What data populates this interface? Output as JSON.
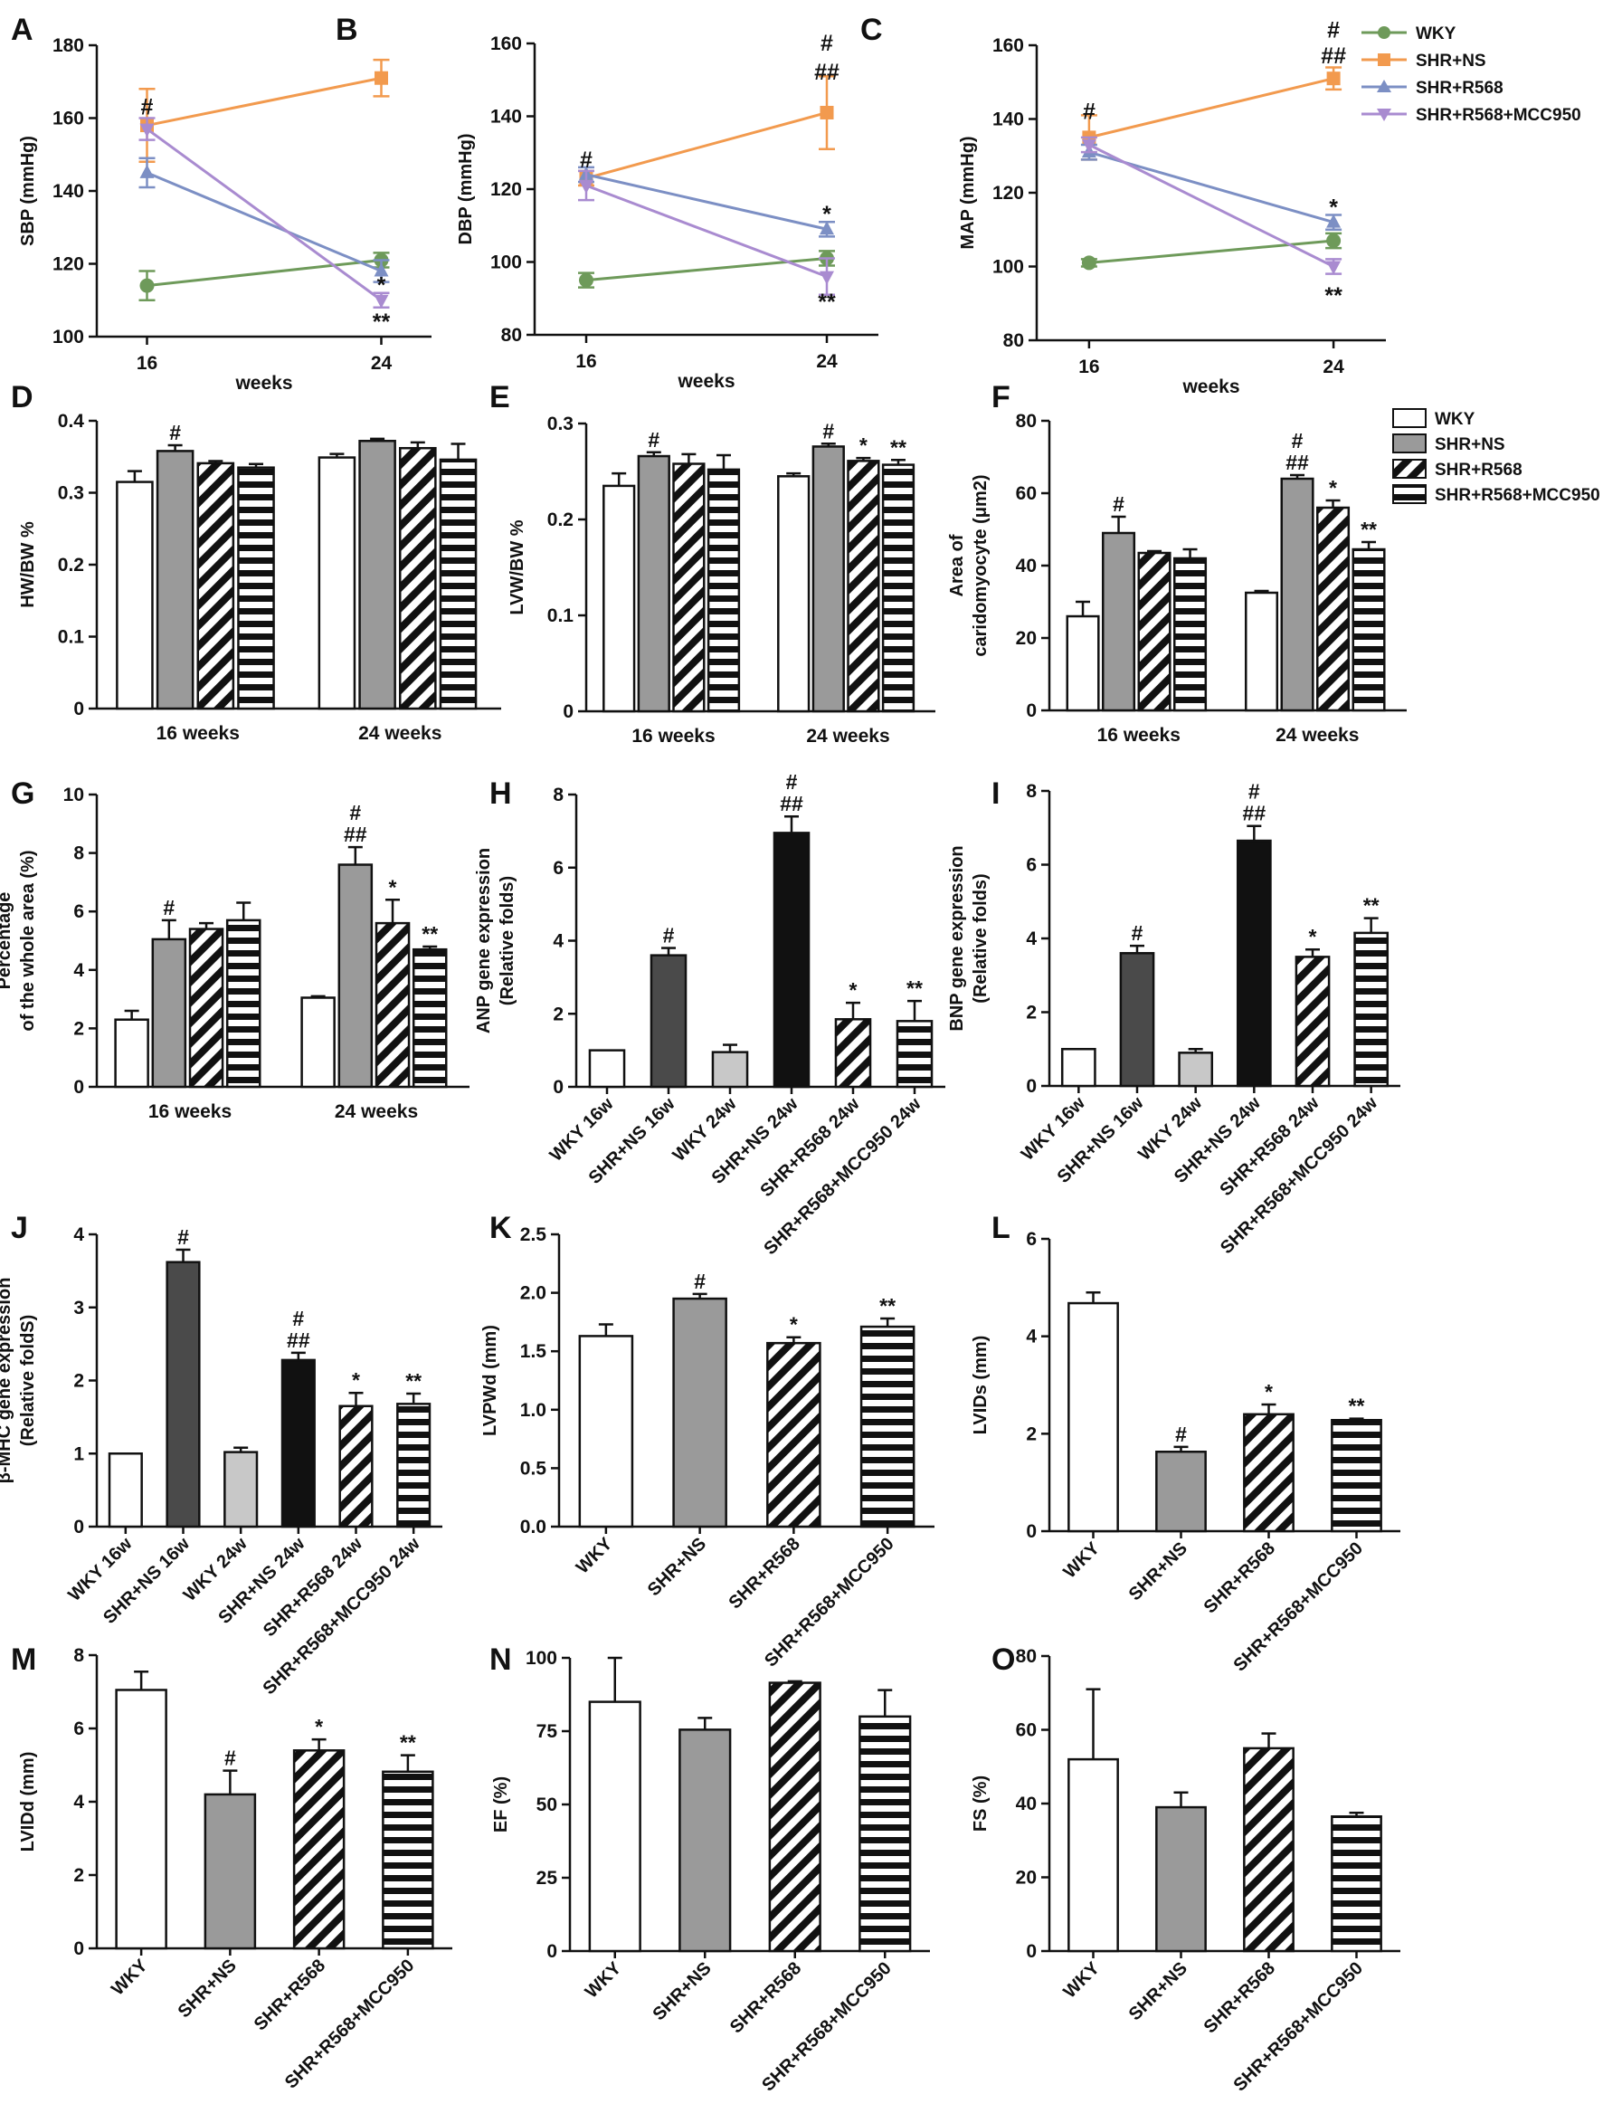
{
  "legend_lines": [
    "WKY",
    "SHR+NS",
    "SHR+R568",
    "SHR+R568+MCC950"
  ],
  "legend_bars": [
    "WKY",
    "SHR+NS",
    "SHR+R568",
    "SHR+R568+MCC950"
  ],
  "colors": {
    "WKY_line": "#6e9a5a",
    "SHR_NS_line": "#f29a4e",
    "SHR_R568_line": "#7c8fc4",
    "SHR_R568_MCC950_line": "#a98bd0",
    "bar_nsgray": "#9a9a9a",
    "bar_dark": "#4a4a4a",
    "bar_light": "#c8c8c8",
    "bar_black": "#111111"
  },
  "chart_data": [
    {
      "panel": "A",
      "type": "line",
      "ylabel": "SBP (mmHg)",
      "xlabel": "weeks",
      "x": [
        16,
        24
      ],
      "ylim": [
        100,
        180
      ],
      "yticks": [
        100,
        120,
        140,
        160,
        180
      ],
      "series": [
        {
          "name": "WKY",
          "values": [
            114,
            121
          ],
          "err": [
            4,
            2
          ]
        },
        {
          "name": "SHR+NS",
          "values": [
            158,
            171
          ],
          "err": [
            10,
            5
          ]
        },
        {
          "name": "SHR+R568",
          "values": [
            145,
            118
          ],
          "err": [
            4,
            3
          ]
        },
        {
          "name": "SHR+R568+MCC950",
          "values": [
            157,
            110
          ],
          "err": [
            3,
            2
          ]
        }
      ],
      "annotations": [
        {
          "x": 16,
          "y": 163,
          "text": "#"
        },
        {
          "x": 24,
          "y": 114,
          "text": "*"
        },
        {
          "x": 24,
          "y": 104,
          "text": "**"
        }
      ]
    },
    {
      "panel": "B",
      "type": "line",
      "ylabel": "DBP (mmHg)",
      "xlabel": "weeks",
      "x": [
        16,
        24
      ],
      "ylim": [
        80,
        160
      ],
      "yticks": [
        80,
        100,
        120,
        140,
        160
      ],
      "series": [
        {
          "name": "WKY",
          "values": [
            95,
            101
          ],
          "err": [
            2,
            2
          ]
        },
        {
          "name": "SHR+NS",
          "values": [
            123,
            141
          ],
          "err": [
            2,
            10
          ]
        },
        {
          "name": "SHR+R568",
          "values": [
            124,
            109
          ],
          "err": [
            2,
            2
          ]
        },
        {
          "name": "SHR+R568+MCC950",
          "values": [
            121,
            96
          ],
          "err": [
            4,
            5
          ]
        }
      ],
      "annotations": [
        {
          "x": 16,
          "y": 128,
          "text": "#"
        },
        {
          "x": 24,
          "y": 160,
          "text": "#"
        },
        {
          "x": 24,
          "y": 152,
          "text": "##"
        },
        {
          "x": 24,
          "y": 113,
          "text": "*"
        },
        {
          "x": 24,
          "y": 89,
          "text": "**"
        }
      ]
    },
    {
      "panel": "C",
      "type": "line",
      "ylabel": "MAP (mmHg)",
      "xlabel": "weeks",
      "x": [
        16,
        24
      ],
      "ylim": [
        80,
        160
      ],
      "yticks": [
        80,
        100,
        120,
        140,
        160
      ],
      "series": [
        {
          "name": "WKY",
          "values": [
            101,
            107
          ],
          "err": [
            1,
            2
          ]
        },
        {
          "name": "SHR+NS",
          "values": [
            135,
            151
          ],
          "err": [
            6,
            3
          ]
        },
        {
          "name": "SHR+R568",
          "values": [
            131,
            112
          ],
          "err": [
            2,
            2
          ]
        },
        {
          "name": "SHR+R568+MCC950",
          "values": [
            133,
            100
          ],
          "err": [
            2,
            2
          ]
        }
      ],
      "annotations": [
        {
          "x": 16,
          "y": 142,
          "text": "#"
        },
        {
          "x": 24,
          "y": 164,
          "text": "#"
        },
        {
          "x": 24,
          "y": 157,
          "text": "##"
        },
        {
          "x": 24,
          "y": 116,
          "text": "*"
        },
        {
          "x": 24,
          "y": 92,
          "text": "**"
        }
      ]
    },
    {
      "panel": "D",
      "type": "bar",
      "ylabel": "HW/BW %",
      "categories": [
        "16 weeks",
        "24 weeks"
      ],
      "ylim": [
        0,
        0.4
      ],
      "yticks": [
        0.0,
        0.1,
        0.2,
        0.3,
        0.4
      ],
      "series": [
        {
          "name": "WKY",
          "values": [
            0.315,
            0.349
          ],
          "err": [
            0.015,
            0.005
          ]
        },
        {
          "name": "SHR+NS",
          "values": [
            0.358,
            0.372
          ],
          "err": [
            0.008,
            0.003
          ]
        },
        {
          "name": "SHR+R568",
          "values": [
            0.341,
            0.362
          ],
          "err": [
            0.003,
            0.008
          ]
        },
        {
          "name": "SHR+R568+MCC950",
          "values": [
            0.335,
            0.346
          ],
          "err": [
            0.005,
            0.022
          ]
        }
      ],
      "annotations": [
        {
          "group": 0,
          "bar": 1,
          "text": "#"
        }
      ]
    },
    {
      "panel": "E",
      "type": "bar",
      "ylabel": "LVW/BW %",
      "categories": [
        "16 weeks",
        "24 weeks"
      ],
      "ylim": [
        0,
        0.3
      ],
      "yticks": [
        0.0,
        0.1,
        0.2,
        0.3
      ],
      "series": [
        {
          "name": "WKY",
          "values": [
            0.235,
            0.245
          ],
          "err": [
            0.013,
            0.003
          ]
        },
        {
          "name": "SHR+NS",
          "values": [
            0.266,
            0.276
          ],
          "err": [
            0.004,
            0.003
          ]
        },
        {
          "name": "SHR+R568",
          "values": [
            0.258,
            0.261
          ],
          "err": [
            0.01,
            0.003
          ]
        },
        {
          "name": "SHR+R568+MCC950",
          "values": [
            0.252,
            0.257
          ],
          "err": [
            0.015,
            0.005
          ]
        }
      ],
      "annotations": [
        {
          "group": 0,
          "bar": 1,
          "text": "#"
        },
        {
          "group": 1,
          "bar": 1,
          "text": "#"
        },
        {
          "group": 1,
          "bar": 2,
          "text": "*"
        },
        {
          "group": 1,
          "bar": 3,
          "text": "**"
        }
      ]
    },
    {
      "panel": "F",
      "type": "bar",
      "ylabel": "Area of caridomyocyte (μm2)",
      "ylabel_lines": [
        "Area of",
        "caridomyocyte (μm2)"
      ],
      "categories": [
        "16 weeks",
        "24 weeks"
      ],
      "ylim": [
        0,
        80
      ],
      "yticks": [
        0,
        20,
        40,
        60,
        80
      ],
      "series": [
        {
          "name": "WKY",
          "values": [
            26,
            32.5
          ],
          "err": [
            4,
            0.5
          ]
        },
        {
          "name": "SHR+NS",
          "values": [
            49,
            64
          ],
          "err": [
            4.5,
            1
          ]
        },
        {
          "name": "SHR+R568",
          "values": [
            43.5,
            56
          ],
          "err": [
            0.5,
            2
          ]
        },
        {
          "name": "SHR+R568+MCC950",
          "values": [
            42,
            44.5
          ],
          "err": [
            2.5,
            2
          ]
        }
      ],
      "annotations": [
        {
          "group": 0,
          "bar": 1,
          "text": "#"
        },
        {
          "group": 1,
          "bar": 1,
          "text": "##"
        },
        {
          "group": 1,
          "bar": 1,
          "text": "#"
        },
        {
          "group": 1,
          "bar": 2,
          "text": "*"
        },
        {
          "group": 1,
          "bar": 3,
          "text": "**"
        }
      ]
    },
    {
      "panel": "G",
      "type": "bar",
      "ylabel": "Percentage of the whole area (%)",
      "ylabel_lines": [
        "Percentage",
        "of the whole area (%)"
      ],
      "categories": [
        "16 weeks",
        "24 weeks"
      ],
      "ylim": [
        0,
        10
      ],
      "yticks": [
        0,
        2,
        4,
        6,
        8,
        10
      ],
      "series": [
        {
          "name": "WKY",
          "values": [
            2.3,
            3.05
          ],
          "err": [
            0.3,
            0.05
          ]
        },
        {
          "name": "SHR+NS",
          "values": [
            5.05,
            7.6
          ],
          "err": [
            0.65,
            0.6
          ]
        },
        {
          "name": "SHR+R568",
          "values": [
            5.4,
            5.6
          ],
          "err": [
            0.2,
            0.8
          ]
        },
        {
          "name": "SHR+R568+MCC950",
          "values": [
            5.7,
            4.7
          ],
          "err": [
            0.6,
            0.1
          ]
        }
      ],
      "annotations": [
        {
          "group": 0,
          "bar": 1,
          "text": "#"
        },
        {
          "group": 1,
          "bar": 1,
          "text": "##"
        },
        {
          "group": 1,
          "bar": 1,
          "text": "#"
        },
        {
          "group": 1,
          "bar": 2,
          "text": "*"
        },
        {
          "group": 1,
          "bar": 3,
          "text": "**"
        }
      ]
    },
    {
      "panel": "H",
      "type": "bar",
      "ylabel": "ANP gene expression (Relative folds)",
      "ylabel_lines": [
        "ANP gene expression",
        "(Relative folds)"
      ],
      "categories": [
        "WKY 16w",
        "SHR+NS 16w",
        "WKY 24w",
        "SHR+NS 24w",
        "SHR+R568 24w",
        "SHR+R568+MCC950 24w"
      ],
      "ylim": [
        0,
        8
      ],
      "yticks": [
        0,
        2,
        4,
        6,
        8
      ],
      "values": [
        1.0,
        3.6,
        0.95,
        6.95,
        1.85,
        1.8
      ],
      "err": [
        0,
        0.2,
        0.2,
        0.45,
        0.45,
        0.55
      ],
      "fills": [
        "white",
        "dark",
        "light",
        "black",
        "diag",
        "horiz"
      ],
      "annotations": [
        {
          "bar": 1,
          "text": "#"
        },
        {
          "bar": 3,
          "text": "##"
        },
        {
          "bar": 3,
          "text": "#"
        },
        {
          "bar": 4,
          "text": "*"
        },
        {
          "bar": 5,
          "text": "**"
        }
      ]
    },
    {
      "panel": "I",
      "type": "bar",
      "ylabel": "BNP gene expression (Relative folds)",
      "ylabel_lines": [
        "BNP gene expression",
        "(Relative folds)"
      ],
      "categories": [
        "WKY 16w",
        "SHR+NS 16w",
        "WKY 24w",
        "SHR+NS 24w",
        "SHR+R568 24w",
        "SHR+R568+MCC950 24w"
      ],
      "ylim": [
        0,
        8
      ],
      "yticks": [
        0,
        2,
        4,
        6,
        8
      ],
      "values": [
        1.0,
        3.6,
        0.9,
        6.65,
        3.5,
        4.15
      ],
      "err": [
        0,
        0.2,
        0.1,
        0.4,
        0.2,
        0.4
      ],
      "fills": [
        "white",
        "dark",
        "light",
        "black",
        "diag",
        "horiz"
      ],
      "annotations": [
        {
          "bar": 1,
          "text": "#"
        },
        {
          "bar": 3,
          "text": "##"
        },
        {
          "bar": 3,
          "text": "#"
        },
        {
          "bar": 4,
          "text": "*"
        },
        {
          "bar": 5,
          "text": "**"
        }
      ]
    },
    {
      "panel": "J",
      "type": "bar",
      "ylabel": "β-MHC gene expression (Relative foldS)",
      "ylabel_lines": [
        "β-MHC gene expression",
        "(Relative foldS)"
      ],
      "categories": [
        "WKY 16w",
        "SHR+NS 16w",
        "WKY 24w",
        "SHR+NS 24w",
        "SHR+R568 24w",
        "SHR+R568+MCC950 24w"
      ],
      "ylim": [
        0,
        4
      ],
      "yticks": [
        0,
        1,
        2,
        3,
        4
      ],
      "values": [
        1.0,
        3.62,
        1.02,
        2.28,
        1.65,
        1.68
      ],
      "err": [
        0,
        0.17,
        0.06,
        0.1,
        0.18,
        0.14
      ],
      "fills": [
        "white",
        "dark",
        "light",
        "black",
        "diag",
        "horiz"
      ],
      "annotations": [
        {
          "bar": 1,
          "text": "#"
        },
        {
          "bar": 3,
          "text": "##"
        },
        {
          "bar": 3,
          "text": "#"
        },
        {
          "bar": 4,
          "text": "*"
        },
        {
          "bar": 5,
          "text": "**"
        }
      ]
    },
    {
      "panel": "K",
      "type": "bar",
      "ylabel": "LVPWd (mm)",
      "categories": [
        "WKY",
        "SHR+NS",
        "SHR+R568",
        "SHR+R568+MCC950"
      ],
      "ylim": [
        0,
        2.5
      ],
      "yticks": [
        "0.0",
        "0.5",
        "1.0",
        "1.5",
        "2.0",
        "2.5"
      ],
      "values": [
        1.63,
        1.95,
        1.57,
        1.71
      ],
      "err": [
        0.1,
        0.04,
        0.05,
        0.07
      ],
      "fills": [
        "white",
        "nsgray",
        "diag",
        "horiz"
      ],
      "annotations": [
        {
          "bar": 1,
          "text": "#"
        },
        {
          "bar": 2,
          "text": "*"
        },
        {
          "bar": 3,
          "text": "**"
        }
      ]
    },
    {
      "panel": "L",
      "type": "bar",
      "ylabel": "LVIDs (mm)",
      "categories": [
        "WKY",
        "SHR+NS",
        "SHR+R568",
        "SHR+R568+MCC950"
      ],
      "ylim": [
        0,
        6
      ],
      "yticks": [
        0,
        2,
        4,
        6
      ],
      "values": [
        4.68,
        1.63,
        2.4,
        2.28
      ],
      "err": [
        0.22,
        0.1,
        0.2,
        0.03
      ],
      "fills": [
        "white",
        "nsgray",
        "diag",
        "horiz"
      ],
      "annotations": [
        {
          "bar": 1,
          "text": "#"
        },
        {
          "bar": 2,
          "text": "*"
        },
        {
          "bar": 3,
          "text": "**"
        }
      ]
    },
    {
      "panel": "M",
      "type": "bar",
      "ylabel": "LVIDd (mm)",
      "categories": [
        "WKY",
        "SHR+NS",
        "SHR+R568",
        "SHR+R568+MCC950"
      ],
      "ylim": [
        0,
        8
      ],
      "yticks": [
        0,
        2,
        4,
        6,
        8
      ],
      "values": [
        7.05,
        4.2,
        5.4,
        4.82
      ],
      "err": [
        0.5,
        0.65,
        0.3,
        0.45
      ],
      "fills": [
        "white",
        "nsgray",
        "diag",
        "horiz"
      ],
      "annotations": [
        {
          "bar": 1,
          "text": "#"
        },
        {
          "bar": 2,
          "text": "*"
        },
        {
          "bar": 3,
          "text": "**"
        }
      ]
    },
    {
      "panel": "N",
      "type": "bar",
      "ylabel": "EF (%)",
      "categories": [
        "WKY",
        "SHR+NS",
        "SHR+R568",
        "SHR+R568+MCC950"
      ],
      "ylim": [
        0,
        100
      ],
      "yticks": [
        0,
        25,
        50,
        75,
        100
      ],
      "values": [
        85,
        75.5,
        91.5,
        80
      ],
      "err": [
        15,
        4,
        0.5,
        9
      ],
      "fills": [
        "white",
        "nsgray",
        "diag",
        "horiz"
      ],
      "annotations": []
    },
    {
      "panel": "O",
      "type": "bar",
      "ylabel": "FS (%)",
      "categories": [
        "WKY",
        "SHR+NS",
        "SHR+R568",
        "SHR+R568+MCC950"
      ],
      "ylim": [
        0,
        80
      ],
      "yticks": [
        0,
        20,
        40,
        60,
        80
      ],
      "values": [
        52,
        39,
        55,
        36.5
      ],
      "err": [
        19,
        4,
        4,
        1
      ],
      "fills": [
        "white",
        "nsgray",
        "diag",
        "horiz"
      ],
      "annotations": []
    }
  ]
}
